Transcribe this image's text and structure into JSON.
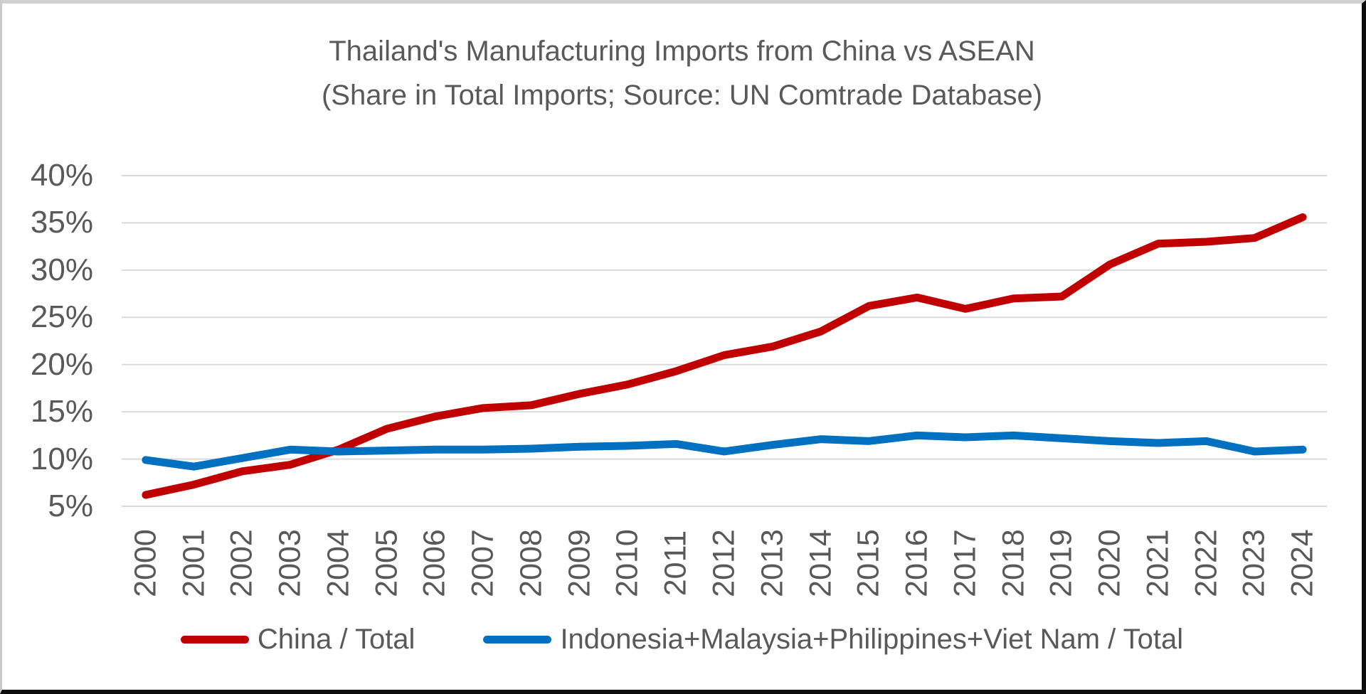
{
  "chart_data": {
    "type": "line",
    "title": "Thailand's Manufacturing Imports from China vs ASEAN",
    "subtitle": "(Share in Total Imports; Source: UN Comtrade Database)",
    "x": [
      "2000",
      "2001",
      "2002",
      "2003",
      "2004",
      "2005",
      "2006",
      "2007",
      "2008",
      "2009",
      "2010",
      "2011",
      "2012",
      "2013",
      "2014",
      "2015",
      "2016",
      "2017",
      "2018",
      "2019",
      "2020",
      "2021",
      "2022",
      "2023",
      "2024"
    ],
    "y_axis": {
      "tick_labels": [
        "40%",
        "35%",
        "30%",
        "25%",
        "20%",
        "15%",
        "10%",
        "5%"
      ],
      "tick_values": [
        40,
        35,
        30,
        25,
        20,
        15,
        10,
        5
      ],
      "ylim": [
        5,
        40
      ],
      "unit": "%"
    },
    "grid": "horizontal",
    "legend_position": "bottom",
    "series": [
      {
        "name": "China / Total",
        "color": "#C00000",
        "values": [
          6.2,
          7.3,
          8.7,
          9.4,
          11.0,
          13.2,
          14.5,
          15.4,
          15.7,
          16.9,
          17.9,
          19.3,
          21.0,
          21.9,
          23.5,
          26.2,
          27.1,
          25.9,
          27.0,
          27.2,
          30.6,
          32.8,
          33.0,
          33.4,
          35.6
        ]
      },
      {
        "name": "Indonesia+Malaysia+Philippines+Viet Nam / Total",
        "color": "#0070C0",
        "values": [
          9.9,
          9.2,
          10.1,
          11.0,
          10.8,
          10.9,
          11.0,
          11.0,
          11.1,
          11.3,
          11.4,
          11.6,
          10.8,
          11.5,
          12.1,
          11.9,
          12.5,
          12.3,
          12.5,
          12.2,
          11.9,
          11.7,
          11.9,
          10.8,
          11.0
        ]
      }
    ]
  },
  "colors": {
    "text": "#595959",
    "gridline": "#D9D9D9",
    "background": "#FFFFFF"
  }
}
